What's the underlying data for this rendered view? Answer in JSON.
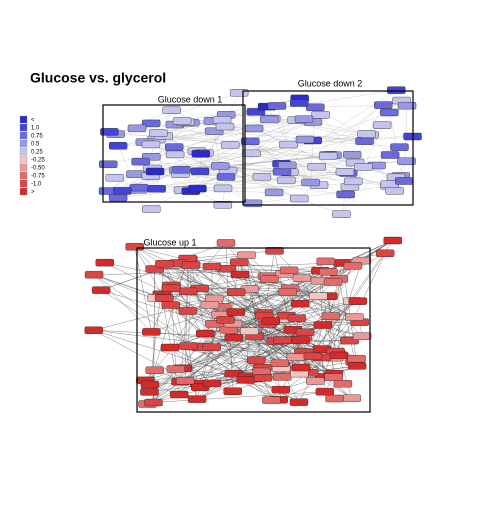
{
  "header": {
    "title": "Glucose vs. glycerol"
  },
  "legend": [
    {
      "label": "<",
      "color": "#2a2ad0"
    },
    {
      "label": "1.0",
      "color": "#4444d8"
    },
    {
      "label": "0.75",
      "color": "#6a6adc"
    },
    {
      "label": "0.5",
      "color": "#9898e4"
    },
    {
      "label": "0.25",
      "color": "#c4c4ee"
    },
    {
      "label": "-0.25",
      "color": "#f2c4c4"
    },
    {
      "label": "-0.50",
      "color": "#ec9898"
    },
    {
      "label": "-0.75",
      "color": "#e46a6a"
    },
    {
      "label": "-1.0",
      "color": "#dc4444"
    },
    {
      "label": ">",
      "color": "#d42a2a"
    }
  ],
  "groups": [
    {
      "label": "Glucose down 1"
    },
    {
      "label": "Glucose down 2"
    },
    {
      "label": "Glucose up 1"
    }
  ]
}
